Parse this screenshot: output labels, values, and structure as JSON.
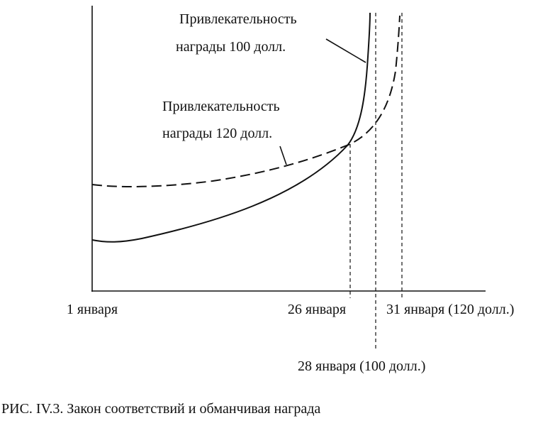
{
  "diagram": {
    "curves": [
      {
        "label": [
          "Привлекательность",
          "награды 100 долл."
        ]
      },
      {
        "label": [
          "Привлекательность",
          "награды 120 долл."
        ]
      }
    ],
    "x_labels": [
      "1 января",
      "26 января",
      "31 января (120 долл.)",
      "28 января (100 долл.)"
    ],
    "caption": "РИС. IV.3.  Закон соответствий и обманчивая награда"
  }
}
